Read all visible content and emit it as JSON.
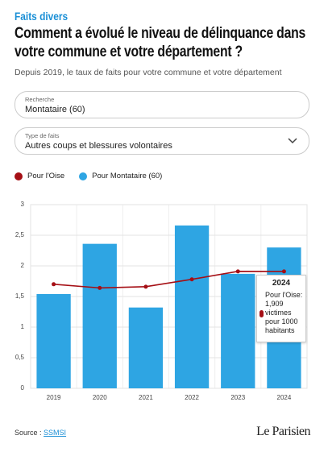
{
  "header": {
    "kicker": "Faits divers",
    "title": "Comment a évolué le niveau de délinquance dans votre commune et votre département ?",
    "subtitle": "Depuis 2019, le taux de faits pour votre commune et votre département"
  },
  "search": {
    "label": "Recherche",
    "value": "Montataire (60)"
  },
  "filter": {
    "label": "Type de faits",
    "value": "Autres coups et blessures volontaires"
  },
  "tooltip": {
    "title": "2024",
    "text": "Pour l'Oise: 1,909 victimes pour 1000 habitants"
  },
  "footer": {
    "source_label": "Source :",
    "source_link": "SSMSI",
    "logo": "Le Parisien"
  },
  "chart_data": {
    "type": "bar-line",
    "categories": [
      "2019",
      "2020",
      "2021",
      "2022",
      "2023",
      "2024"
    ],
    "series": [
      {
        "name": "Pour l'Oise",
        "type": "line",
        "color": "#a50f15",
        "values": [
          1.7,
          1.64,
          1.66,
          1.78,
          1.91,
          1.909
        ]
      },
      {
        "name": "Pour Montataire (60)",
        "type": "bar",
        "color": "#2ea5e3",
        "values": [
          1.54,
          2.36,
          1.32,
          2.66,
          1.87,
          2.3
        ]
      }
    ],
    "ylim": [
      0,
      3
    ],
    "yticks": [
      0,
      {
        "value": 0.5,
        "label": "0,5"
      },
      1,
      {
        "value": 1.5,
        "label": "1,5"
      },
      2,
      {
        "value": 2.5,
        "label": "2,5"
      },
      3
    ],
    "grid": true
  }
}
